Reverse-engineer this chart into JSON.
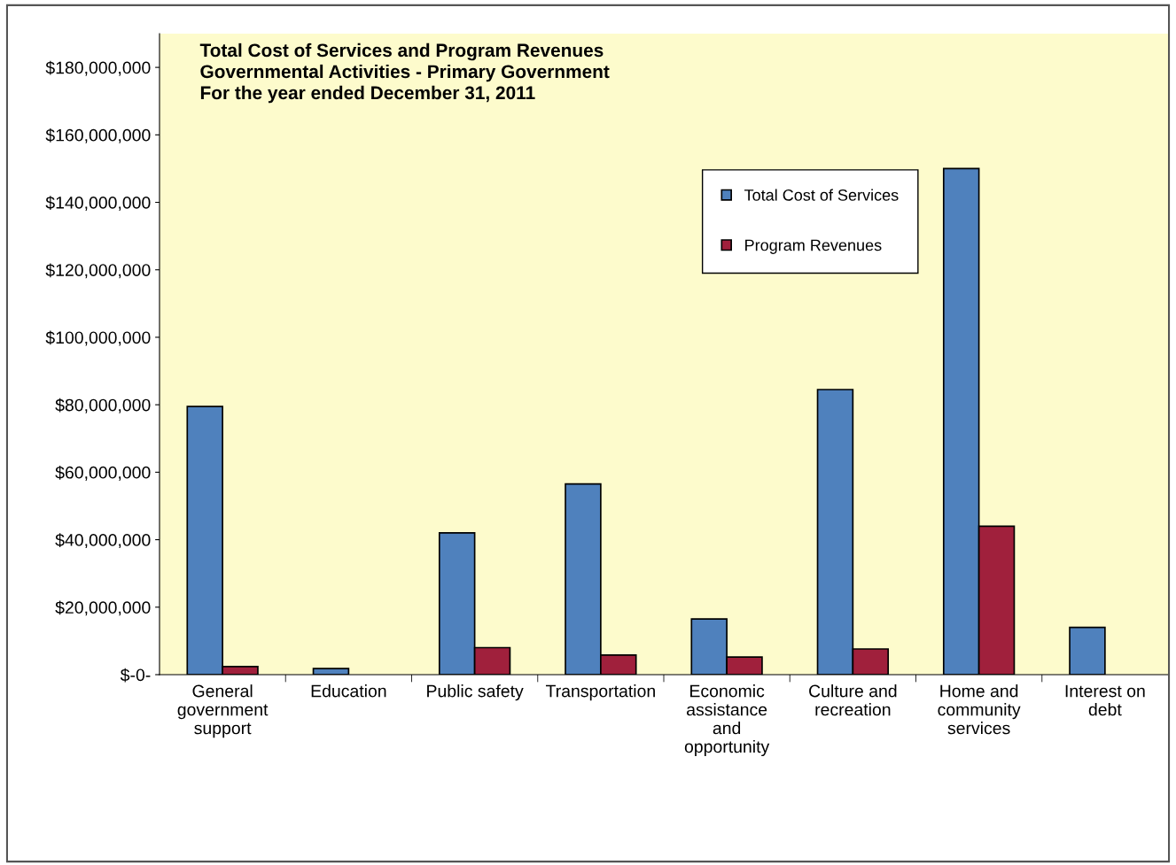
{
  "chart_data": {
    "type": "bar",
    "title": "Total Cost of Services and Program Revenues\nGovernmental Activities - Primary Government\nFor the year ended December 31, 2011",
    "categories": [
      "General\ngovernment\nsupport",
      "Education",
      "Public safety",
      "Transportation",
      "Economic\nassistance\nand\nopportunity",
      "Culture and\nrecreation",
      "Home and\ncommunity\nservices",
      "Interest on\ndebt"
    ],
    "series": [
      {
        "name": "Total Cost of Services",
        "color": "#4f81bd",
        "values": [
          79500000,
          1800000,
          42000000,
          56500000,
          16500000,
          84500000,
          150000000,
          14000000
        ]
      },
      {
        "name": "Program Revenues",
        "color": "#a0203c",
        "values": [
          2400000,
          null,
          8000000,
          5800000,
          5200000,
          7600000,
          44000000,
          null
        ]
      }
    ],
    "ylim": [
      0,
      190000000
    ],
    "yticks": [
      {
        "value": 0,
        "label": "$-0-"
      },
      {
        "value": 20000000,
        "label": "$20,000,000"
      },
      {
        "value": 40000000,
        "label": "$40,000,000"
      },
      {
        "value": 60000000,
        "label": "$60,000,000"
      },
      {
        "value": 80000000,
        "label": "$80,000,000"
      },
      {
        "value": 100000000,
        "label": "$100,000,000"
      },
      {
        "value": 120000000,
        "label": "$120,000,000"
      },
      {
        "value": 140000000,
        "label": "$140,000,000"
      },
      {
        "value": 160000000,
        "label": "$160,000,000"
      },
      {
        "value": 180000000,
        "label": "$180,000,000"
      }
    ],
    "legend": "top right",
    "grid": false
  }
}
